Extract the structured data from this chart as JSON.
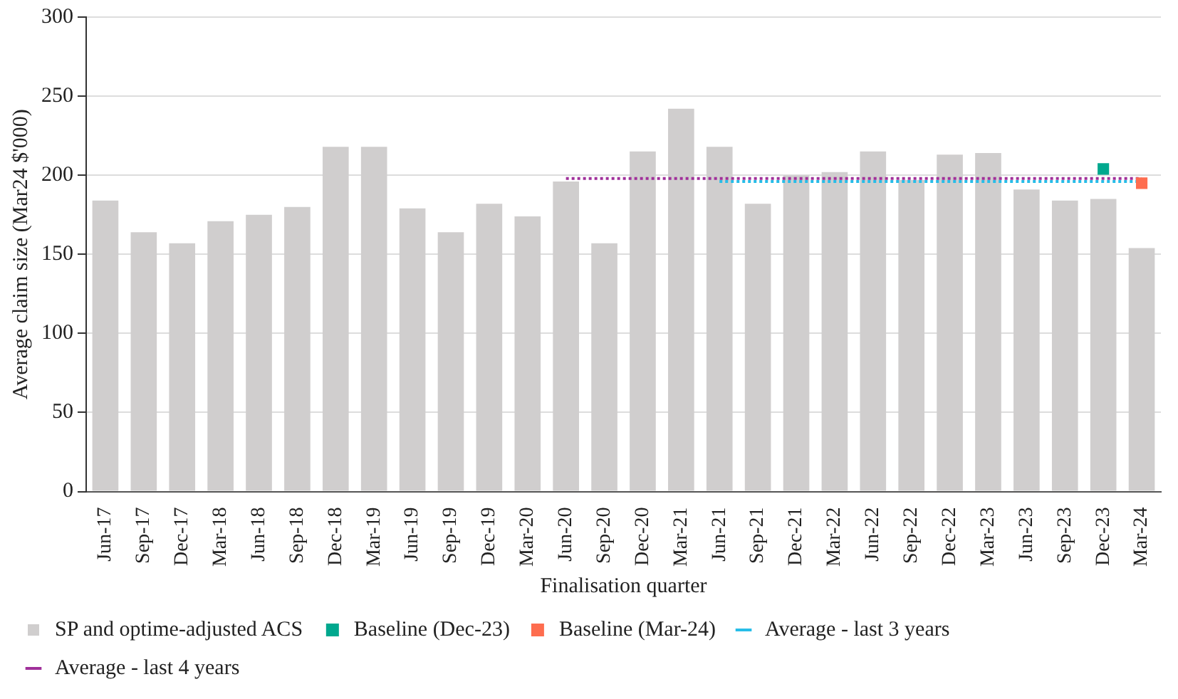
{
  "chart_data": {
    "type": "bar",
    "xlabel": "Finalisation quarter",
    "ylabel": "Average claim size (Mar24 $'000)",
    "categories": [
      "Jun-17",
      "Sep-17",
      "Dec-17",
      "Mar-18",
      "Jun-18",
      "Sep-18",
      "Dec-18",
      "Mar-19",
      "Jun-19",
      "Sep-19",
      "Dec-19",
      "Mar-20",
      "Jun-20",
      "Sep-20",
      "Dec-20",
      "Mar-21",
      "Jun-21",
      "Sep-21",
      "Dec-21",
      "Mar-22",
      "Jun-22",
      "Sep-22",
      "Dec-22",
      "Mar-23",
      "Jun-23",
      "Sep-23",
      "Dec-23",
      "Mar-24"
    ],
    "series": [
      {
        "name": "SP and optime-adjusted ACS",
        "color": "#d0cece",
        "values": [
          184,
          164,
          157,
          171,
          175,
          180,
          218,
          218,
          179,
          164,
          182,
          174,
          196,
          157,
          215,
          242,
          218,
          182,
          200,
          202,
          215,
          197,
          213,
          214,
          191,
          184,
          185,
          154
        ]
      },
      {
        "name": "Baseline (Dec-23)",
        "type": "scatter",
        "color": "#00a88e",
        "marker": "square",
        "values": [
          null,
          null,
          null,
          null,
          null,
          null,
          null,
          null,
          null,
          null,
          null,
          null,
          null,
          null,
          null,
          null,
          null,
          null,
          null,
          null,
          null,
          null,
          null,
          null,
          null,
          null,
          204,
          null
        ]
      },
      {
        "name": "Baseline (Mar-24)",
        "type": "scatter",
        "color": "#fe6d4f",
        "marker": "square",
        "values": [
          null,
          null,
          null,
          null,
          null,
          null,
          null,
          null,
          null,
          null,
          null,
          null,
          null,
          null,
          null,
          null,
          null,
          null,
          null,
          null,
          null,
          null,
          null,
          null,
          null,
          null,
          null,
          195
        ]
      },
      {
        "name": "Average - last 3 years",
        "type": "line",
        "color": "#27bde8",
        "line_style": "dotted",
        "marker": "none",
        "values": [
          null,
          null,
          null,
          null,
          null,
          null,
          null,
          null,
          null,
          null,
          null,
          null,
          null,
          null,
          null,
          null,
          196,
          196,
          196,
          196,
          196,
          196,
          196,
          196,
          196,
          196,
          196,
          196
        ]
      },
      {
        "name": "Average - last 4 years",
        "type": "line",
        "color": "#a0309a",
        "line_style": "dotted",
        "marker": "none",
        "values": [
          null,
          null,
          null,
          null,
          null,
          null,
          null,
          null,
          null,
          null,
          null,
          null,
          198,
          198,
          198,
          198,
          198,
          198,
          198,
          198,
          198,
          198,
          198,
          198,
          198,
          198,
          198,
          198
        ]
      }
    ],
    "ylim": [
      0,
      300
    ],
    "yticks": [
      0,
      50,
      100,
      150,
      200,
      250,
      300
    ],
    "grid": "y",
    "legend": "bottom"
  }
}
